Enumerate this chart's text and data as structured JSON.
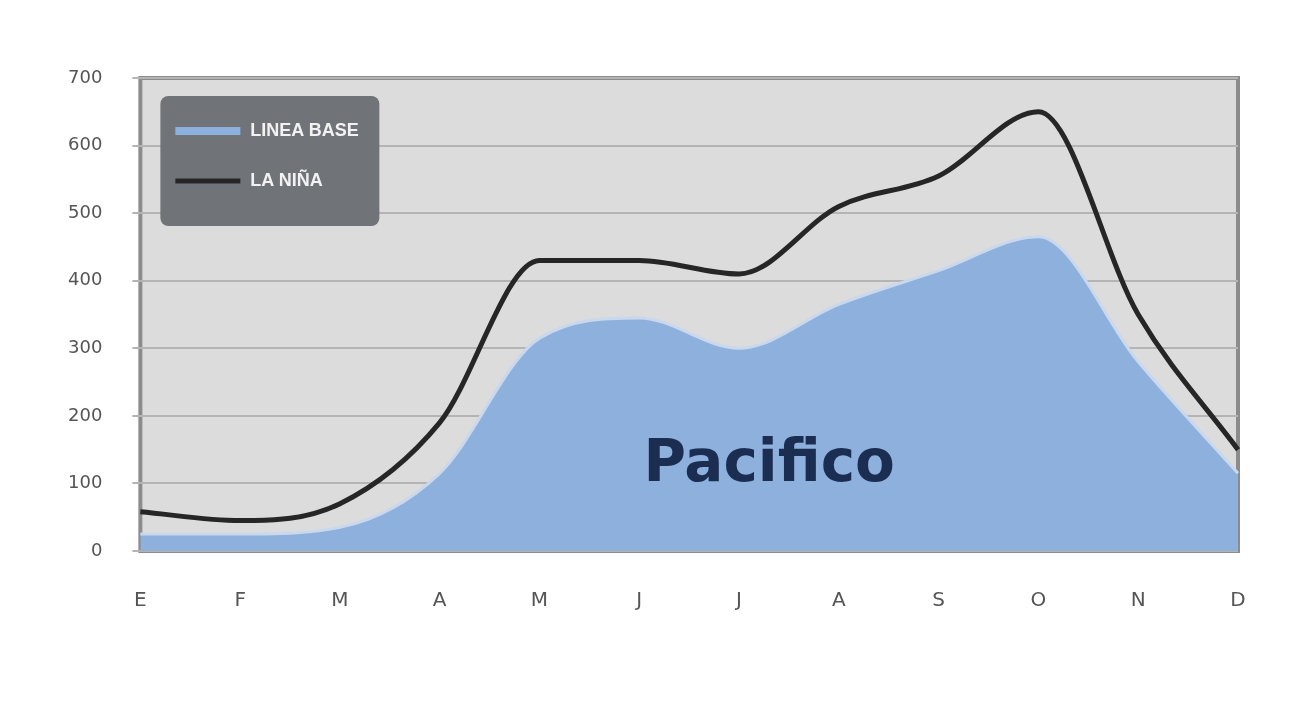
{
  "chart_data": {
    "type": "area",
    "categories": [
      "E",
      "F",
      "M",
      "A",
      "M",
      "J",
      "J",
      "A",
      "S",
      "O",
      "N",
      "D"
    ],
    "series": [
      {
        "name": "LINEA BASE",
        "type": "area",
        "color": "#8eb0dc",
        "values": [
          25,
          25,
          35,
          115,
          315,
          345,
          300,
          365,
          415,
          465,
          280,
          115
        ]
      },
      {
        "name": "LA NIÑA",
        "type": "line",
        "color": "#262626",
        "values": [
          58,
          45,
          70,
          190,
          430,
          430,
          410,
          510,
          555,
          650,
          350,
          150
        ]
      }
    ],
    "ylim": [
      0,
      700
    ],
    "yticks": [
      0,
      100,
      200,
      300,
      400,
      500,
      600,
      700
    ],
    "grid": "y",
    "legend": "top left",
    "line_style": "solid",
    "marker": "none",
    "annotations": [
      "Pacifico"
    ]
  }
}
